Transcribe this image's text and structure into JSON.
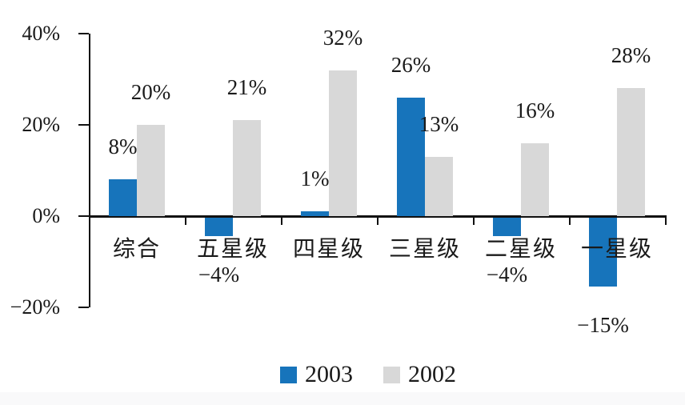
{
  "colors": {
    "series_2003": "#1774BB",
    "series_2002": "#D8D8D8",
    "axis": "#111111",
    "text": "#1A1A1A",
    "background": "#FFFFFF"
  },
  "chart_data": {
    "type": "bar",
    "title": "",
    "categories": [
      "综合",
      "五星级",
      "四星级",
      "三星级",
      "二星级",
      "一星级"
    ],
    "series": [
      {
        "name": "2003",
        "color": "#1774BB",
        "values": [
          8,
          -4,
          1,
          26,
          -4,
          -15
        ],
        "labels": [
          "8%",
          "−4%",
          "1%",
          "26%",
          "−4%",
          "−15%"
        ]
      },
      {
        "name": "2002",
        "color": "#D8D8D8",
        "values": [
          20,
          21,
          32,
          13,
          16,
          28
        ],
        "labels": [
          "20%",
          "21%",
          "32%",
          "13%",
          "16%",
          "28%"
        ]
      }
    ],
    "y_axis": {
      "tick_labels": [
        "40%",
        "20%",
        "0%",
        "−20%"
      ],
      "tick_values": [
        40,
        20,
        0,
        -20
      ],
      "range": [
        -20,
        40
      ],
      "grid": false
    },
    "legend": {
      "position": "bottom",
      "entries": [
        "2003",
        "2002"
      ]
    }
  }
}
